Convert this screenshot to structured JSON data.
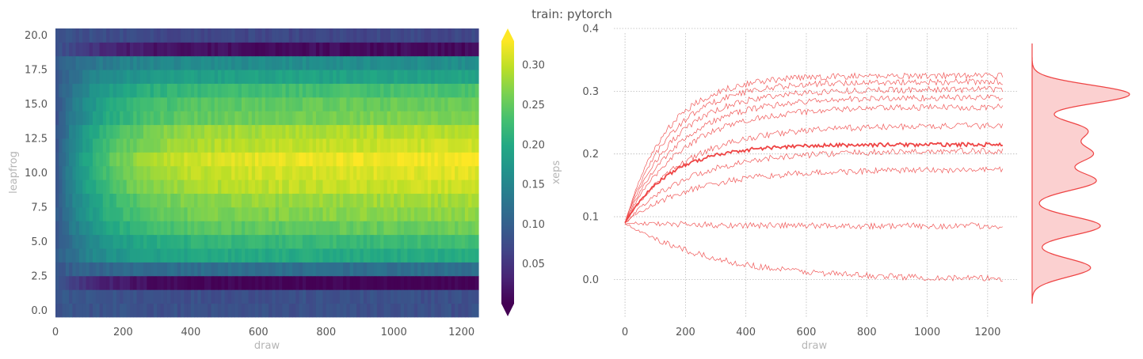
{
  "suptitle": "train: pytorch",
  "chart_data": [
    {
      "type": "heatmap",
      "xlabel": "draw",
      "ylabel": "leapfrog",
      "xlim": [
        0,
        1250
      ],
      "ylim": [
        -0.5,
        20.5
      ],
      "x_ticks": [
        "0",
        "200",
        "400",
        "600",
        "800",
        "1000",
        "1200"
      ],
      "y_ticks": [
        "0.0",
        "2.5",
        "5.0",
        "7.5",
        "10.0",
        "12.5",
        "15.0",
        "17.5",
        "20.0"
      ],
      "rows": 21,
      "row_plateau_values": [
        0.08,
        0.08,
        0.0,
        0.12,
        0.2,
        0.22,
        0.25,
        0.27,
        0.28,
        0.3,
        0.31,
        0.32,
        0.3,
        0.29,
        0.26,
        0.25,
        0.23,
        0.19,
        0.16,
        0.01,
        0.07
      ],
      "initial_value": 0.09,
      "colormap": "viridis",
      "colorbar": {
        "label": "xeps",
        "ticks": [
          "0.05",
          "0.10",
          "0.15",
          "0.20",
          "0.25",
          "0.30"
        ],
        "range": [
          0.0,
          0.33
        ],
        "extend": "both"
      }
    },
    {
      "type": "line",
      "xlabel": "draw",
      "ylabel": "",
      "xlim": [
        -50,
        1300
      ],
      "ylim": [
        -0.06,
        0.4
      ],
      "x_ticks": [
        "0",
        "200",
        "400",
        "600",
        "800",
        "1000",
        "1200"
      ],
      "y_ticks": [
        "0.0",
        "0.1",
        "0.2",
        "0.3",
        "0.4"
      ],
      "grid": true,
      "color": "#ee4444",
      "series_plateaus": [
        0.325,
        0.315,
        0.303,
        0.29,
        0.275,
        0.245,
        0.205,
        0.175,
        0.085,
        0.0
      ],
      "mean_plateau": 0.215,
      "start_value": 0.09
    },
    {
      "type": "area",
      "orientation": "vertical-density",
      "color": "#ee4444",
      "peaks": [
        0.305,
        0.245,
        0.205,
        0.16,
        0.085,
        0.015
      ]
    }
  ]
}
